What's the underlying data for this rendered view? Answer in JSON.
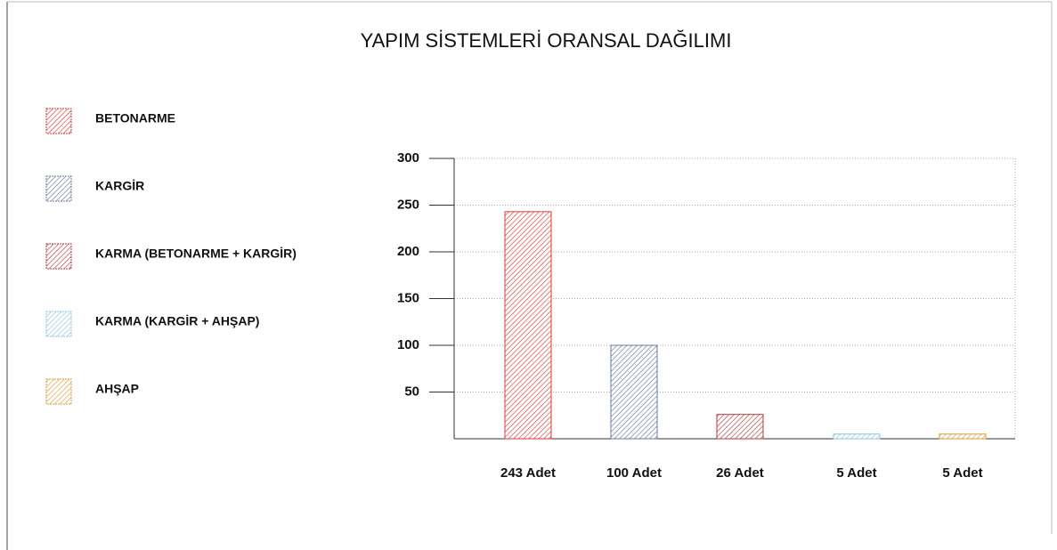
{
  "chart_data": {
    "type": "bar",
    "title": "YAPIM SİSTEMLERİ ORANSAL DAĞILIMI",
    "categories": [
      "BETONARME",
      "KARGİR",
      "KARMA (BETONARME + KARGİR)",
      "KARMA (KARGİR + AHŞAP)",
      "AHŞAP"
    ],
    "values": [
      243,
      100,
      26,
      5,
      5
    ],
    "value_labels": [
      "243 Adet",
      "100 Adet",
      "26 Adet",
      "5 Adet",
      "5 Adet"
    ],
    "colors": [
      "#d93a3a",
      "#6b7898",
      "#b03c3c",
      "#8cc4dc",
      "#e09a3a"
    ],
    "ylim": [
      0,
      300
    ],
    "yticks": [
      50,
      100,
      150,
      200,
      250,
      300
    ],
    "grid": true
  }
}
